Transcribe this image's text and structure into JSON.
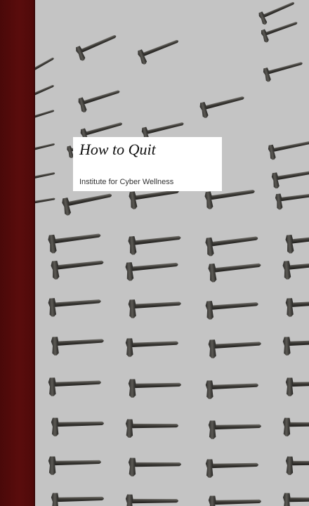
{
  "book": {
    "title": "How to Quit",
    "publisher": "Institute for Cyber Wellness"
  },
  "colors": {
    "spine": "#560b0b",
    "background": "#c4c4c4",
    "hammer": "#3c3a36"
  },
  "pattern_icon": "hammer-icon"
}
